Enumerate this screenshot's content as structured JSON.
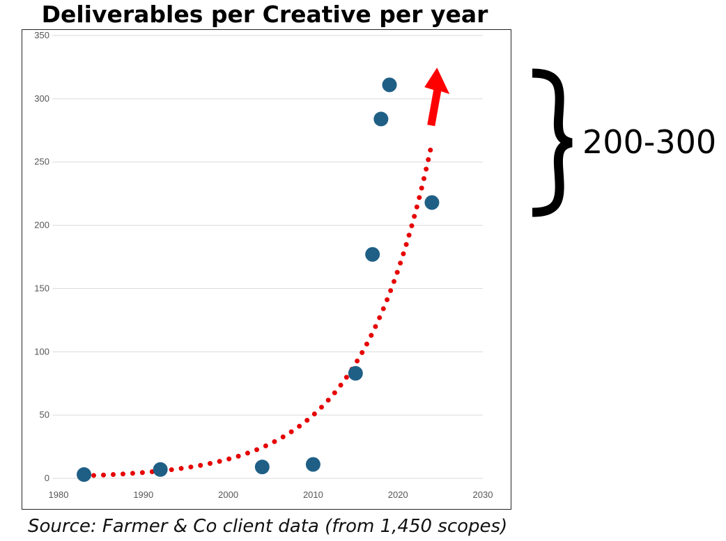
{
  "title": "Deliverables per Creative per year",
  "source": "Source: Farmer & Co client data (from 1,450 scopes)",
  "annotation": {
    "range_label": "200-300",
    "range_low": 200,
    "range_high": 300
  },
  "colors": {
    "points": "#1f5f85",
    "trend": "#e60000",
    "arrow": "#ff0000",
    "grid": "#d9d9d9",
    "tick_text": "#555555"
  },
  "chart_data": {
    "type": "scatter",
    "title": "Deliverables per Creative per year",
    "xlabel": "",
    "ylabel": "",
    "xlim": [
      1980,
      2030
    ],
    "ylim": [
      0,
      350
    ],
    "xticks": [
      1980,
      1990,
      2000,
      2010,
      2020,
      2030
    ],
    "yticks": [
      0,
      50,
      100,
      150,
      200,
      250,
      300,
      350
    ],
    "grid": "horizontal",
    "series": [
      {
        "type": "scatter",
        "x": [
          1983,
          1992,
          2004,
          2010,
          2015,
          2017,
          2018,
          2019,
          2024
        ],
        "y": [
          3,
          7,
          9,
          11,
          83,
          177,
          284,
          311,
          218
        ]
      }
    ],
    "trendline": {
      "style": "dotted",
      "kind": "exponential",
      "x_start": 1983,
      "x_end": 2024,
      "y_start": 2,
      "y_end": 265,
      "arrow": true
    }
  }
}
